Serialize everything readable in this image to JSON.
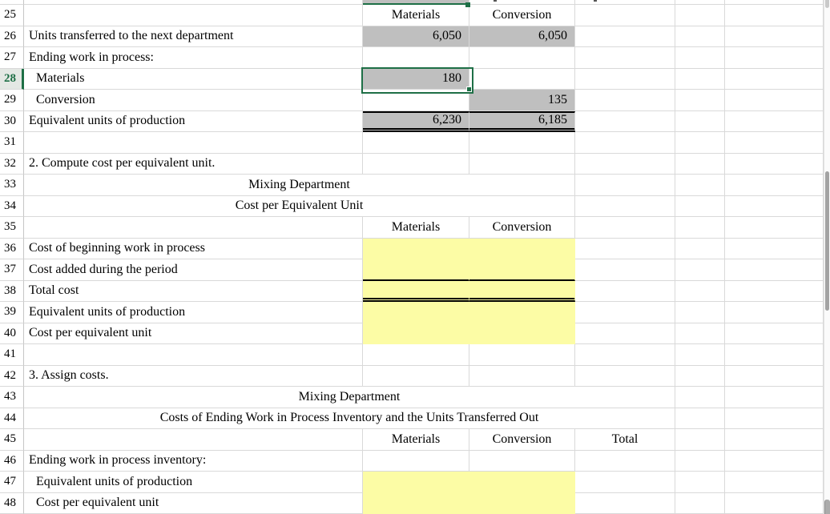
{
  "app": {
    "type": "spreadsheet-worksheet"
  },
  "colors": {
    "gray_fill": "#bfbfbf",
    "yellow_fill": "#fcfca5",
    "selection_green": "#1e6f46",
    "gridline": "#d9d9d9",
    "border_black": "#000000"
  },
  "sheet": {
    "partial_row": {
      "note_fill_col": "C",
      "green_bottom_border_col": "C"
    },
    "active_cell": {
      "row": "28",
      "col": "C",
      "value": "180"
    },
    "rows": [
      {
        "n": "25",
        "cells": [
          {
            "col": "C",
            "text": "Materials",
            "align": "center"
          },
          {
            "col": "D",
            "text": "Conversion",
            "align": "center"
          }
        ]
      },
      {
        "n": "26",
        "b": "Units transferred to the next department",
        "cells": [
          {
            "col": "C",
            "text": "6,050",
            "align": "right",
            "fill": "gray"
          },
          {
            "col": "D",
            "text": "6,050",
            "align": "right",
            "fill": "gray"
          }
        ]
      },
      {
        "n": "27",
        "b": "Ending work in process:"
      },
      {
        "n": "28",
        "b": "Materials",
        "indent": true,
        "selected": true,
        "cells": [
          {
            "col": "C",
            "text": "180",
            "align": "right",
            "fill": "gray",
            "selected": true
          }
        ]
      },
      {
        "n": "29",
        "b": "Conversion",
        "indent": true,
        "cells": [
          {
            "col": "D",
            "text": "135",
            "align": "right",
            "fill": "gray"
          }
        ]
      },
      {
        "n": "30",
        "b": "Equivalent units of production",
        "cells": [
          {
            "col": "C",
            "text": "6,230",
            "align": "right",
            "fill": "gray",
            "border_top": true,
            "border_bottom": "double"
          },
          {
            "col": "D",
            "text": "6,185",
            "align": "right",
            "fill": "gray",
            "border_top": true,
            "border_bottom": "double"
          }
        ]
      },
      {
        "n": "31"
      },
      {
        "n": "32",
        "b": "2. Compute cost per equivalent unit."
      },
      {
        "n": "33",
        "title": {
          "text": "Mixing Department",
          "span": "B:D"
        }
      },
      {
        "n": "34",
        "title": {
          "text": "Cost per Equivalent Unit",
          "span": "B:D"
        }
      },
      {
        "n": "35",
        "cells": [
          {
            "col": "C",
            "text": "Materials",
            "align": "center"
          },
          {
            "col": "D",
            "text": "Conversion",
            "align": "center"
          }
        ]
      },
      {
        "n": "36",
        "b": "Cost of beginning work in process",
        "cells": [
          {
            "col": "C",
            "fill": "yellow"
          },
          {
            "col": "D",
            "fill": "yellow"
          }
        ]
      },
      {
        "n": "37",
        "b": "Cost added during the period",
        "cells": [
          {
            "col": "C",
            "fill": "yellow",
            "border_bottom": "single"
          },
          {
            "col": "D",
            "fill": "yellow",
            "border_bottom": "single"
          }
        ]
      },
      {
        "n": "38",
        "b": "Total cost",
        "cells": [
          {
            "col": "C",
            "fill": "yellow",
            "border_bottom": "double"
          },
          {
            "col": "D",
            "fill": "yellow",
            "border_bottom": "double"
          }
        ]
      },
      {
        "n": "39",
        "b": "Equivalent units of production",
        "cells": [
          {
            "col": "C",
            "fill": "yellow"
          },
          {
            "col": "D",
            "fill": "yellow"
          }
        ]
      },
      {
        "n": "40",
        "b": "Cost per equivalent unit",
        "cells": [
          {
            "col": "C",
            "fill": "yellow"
          },
          {
            "col": "D",
            "fill": "yellow"
          }
        ]
      },
      {
        "n": "41"
      },
      {
        "n": "42",
        "b": "3. Assign costs."
      },
      {
        "n": "43",
        "title": {
          "text": "Mixing Department",
          "span": "B:E"
        }
      },
      {
        "n": "44",
        "title": {
          "text": "Costs of Ending Work in Process Inventory and the Units Transferred Out",
          "span": "B:E"
        }
      },
      {
        "n": "45",
        "cells": [
          {
            "col": "C",
            "text": "Materials",
            "align": "center"
          },
          {
            "col": "D",
            "text": "Conversion",
            "align": "center"
          },
          {
            "col": "E",
            "text": "Total",
            "align": "center"
          }
        ]
      },
      {
        "n": "46",
        "b": "Ending work in process inventory:"
      },
      {
        "n": "47",
        "b": "Equivalent units of production",
        "indent": true,
        "cells": [
          {
            "col": "C",
            "fill": "yellow"
          },
          {
            "col": "D",
            "fill": "yellow"
          }
        ]
      },
      {
        "n": "48",
        "b": "Cost per equivalent unit",
        "indent": true,
        "cells": [
          {
            "col": "C",
            "fill": "yellow"
          },
          {
            "col": "D",
            "fill": "yellow"
          }
        ]
      }
    ]
  }
}
